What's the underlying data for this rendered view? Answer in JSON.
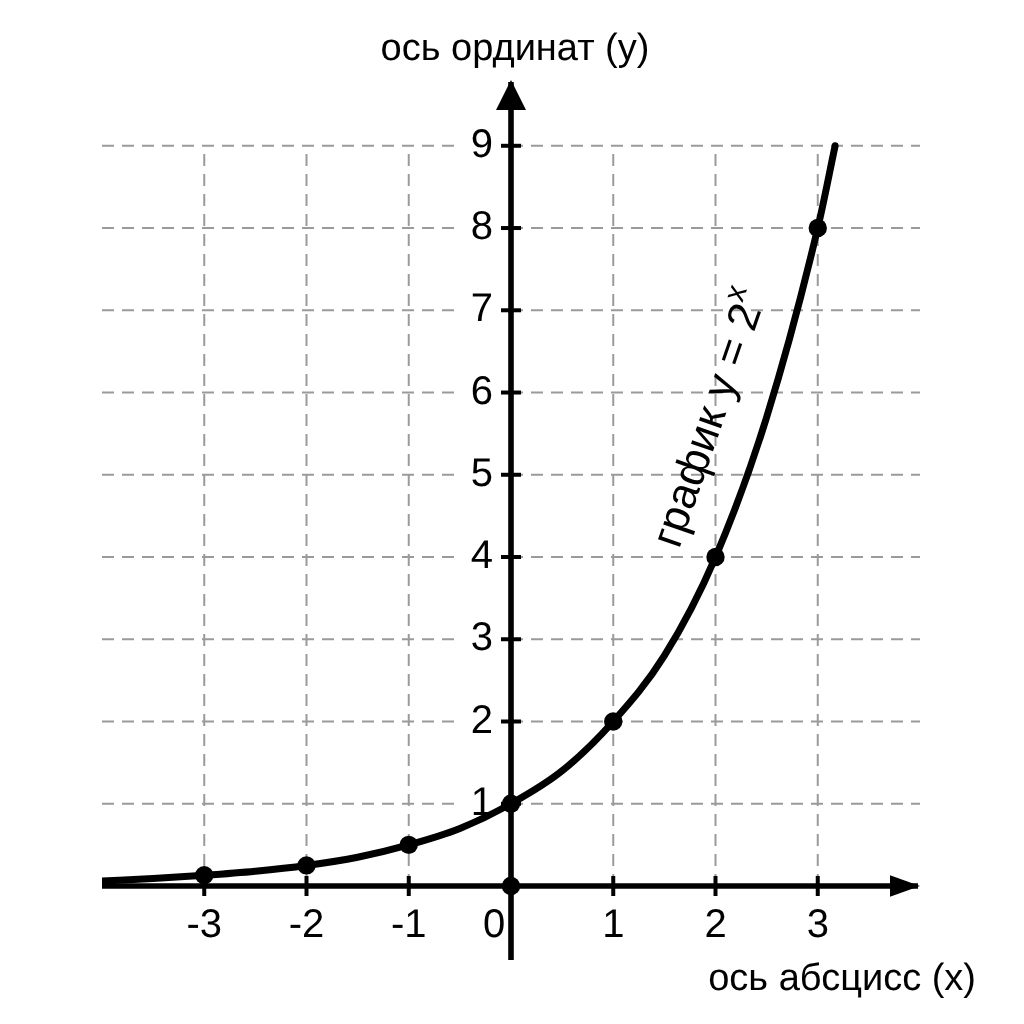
{
  "chart_data": {
    "type": "line",
    "xlabel": "ось абсцисс (x)",
    "ylabel": "ось ординат (y)",
    "xlim": [
      -4,
      4
    ],
    "ylim": [
      -0.9,
      9.8
    ],
    "xticks": [
      -3,
      -2,
      -1,
      0,
      1,
      2,
      3
    ],
    "yticks": [
      1,
      2,
      3,
      4,
      5,
      6,
      7,
      8,
      9
    ],
    "grid": true,
    "series": [
      {
        "type": "line",
        "color": "#000000",
        "marker": "none",
        "x": [
          -4,
          -3.5,
          -3,
          -2.5,
          -2,
          -1.5,
          -1,
          -0.5,
          0,
          0.5,
          1,
          1.5,
          2,
          2.5,
          3,
          3.17
        ],
        "values": [
          0.06,
          0.09,
          0.13,
          0.18,
          0.25,
          0.35,
          0.5,
          0.7,
          1,
          1.4,
          2,
          2.8,
          4,
          5.7,
          8,
          9
        ]
      },
      {
        "type": "scatter",
        "color": "#000000",
        "marker": "circle",
        "x": [
          -3,
          -2,
          -1,
          0,
          1,
          2,
          3
        ],
        "values": [
          0.13,
          0.25,
          0.5,
          1,
          2,
          4,
          8
        ]
      },
      {
        "type": "scatter",
        "color": "#000000",
        "marker": "circle",
        "x": [
          0
        ],
        "values": [
          0
        ]
      }
    ],
    "annotations": [
      "график y = 2$^{x}$"
    ]
  }
}
